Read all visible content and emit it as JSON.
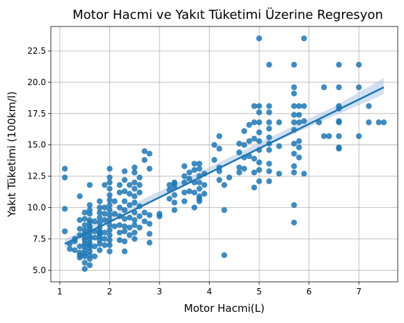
{
  "chart_data": {
    "type": "scatter",
    "title": "Motor Hacmi ve Yakıt Tüketimi Üzerine Regresyon",
    "xlabel": "Motor Hacmi(L)",
    "ylabel": "Yakıt Tüketimi (100km/l)",
    "xlim": [
      0.82,
      7.78
    ],
    "ylim": [
      4.07,
      24.45
    ],
    "xticks": [
      1,
      2,
      3,
      4,
      5,
      6,
      7
    ],
    "yticks": [
      5.0,
      7.5,
      10.0,
      12.5,
      15.0,
      17.5,
      20.0,
      22.5
    ],
    "grid": true,
    "colors": {
      "points": "#1f77b4",
      "line": "#1f77b4",
      "band": "#aec7e8"
    },
    "regression": {
      "x": [
        1.1,
        7.5
      ],
      "y": [
        7.1,
        19.6
      ]
    },
    "confidence_band": {
      "x": [
        1.1,
        1.8,
        2.5,
        3.5,
        4.5,
        5.5,
        6.5,
        7.5
      ],
      "lower": [
        6.75,
        8.45,
        9.85,
        11.85,
        13.75,
        15.55,
        17.3,
        19.05
      ],
      "upper": [
        7.45,
        8.95,
        10.35,
        12.25,
        14.2,
        16.15,
        18.05,
        20.35
      ]
    },
    "points": [
      [
        1.1,
        13.1
      ],
      [
        1.1,
        12.4
      ],
      [
        1.1,
        9.9
      ],
      [
        1.1,
        8.1
      ],
      [
        1.2,
        7.1
      ],
      [
        1.2,
        6.7
      ],
      [
        1.3,
        7.5
      ],
      [
        1.3,
        6.6
      ],
      [
        1.3,
        7.3
      ],
      [
        1.4,
        6.2
      ],
      [
        1.4,
        6.0
      ],
      [
        1.4,
        6.9
      ],
      [
        1.4,
        7.8
      ],
      [
        1.4,
        8.3
      ],
      [
        1.4,
        9.0
      ],
      [
        1.4,
        10.9
      ],
      [
        1.4,
        6.4
      ],
      [
        1.5,
        5.1
      ],
      [
        1.5,
        5.6
      ],
      [
        1.5,
        6.1
      ],
      [
        1.5,
        6.3
      ],
      [
        1.5,
        6.6
      ],
      [
        1.5,
        6.9
      ],
      [
        1.5,
        7.1
      ],
      [
        1.5,
        7.4
      ],
      [
        1.5,
        7.6
      ],
      [
        1.5,
        7.9
      ],
      [
        1.5,
        8.2
      ],
      [
        1.5,
        8.6
      ],
      [
        1.5,
        9.1
      ],
      [
        1.5,
        9.6
      ],
      [
        1.6,
        5.4
      ],
      [
        1.6,
        5.9
      ],
      [
        1.6,
        6.2
      ],
      [
        1.6,
        6.5
      ],
      [
        1.6,
        6.8
      ],
      [
        1.6,
        7.0
      ],
      [
        1.6,
        7.2
      ],
      [
        1.6,
        7.5
      ],
      [
        1.6,
        7.7
      ],
      [
        1.6,
        8.0
      ],
      [
        1.6,
        8.3
      ],
      [
        1.6,
        8.5
      ],
      [
        1.6,
        8.8
      ],
      [
        1.6,
        9.0
      ],
      [
        1.6,
        9.5
      ],
      [
        1.6,
        9.8
      ],
      [
        1.6,
        10.2
      ],
      [
        1.6,
        11.8
      ],
      [
        1.7,
        6.1
      ],
      [
        1.7,
        6.9
      ],
      [
        1.7,
        7.6
      ],
      [
        1.7,
        8.1
      ],
      [
        1.7,
        8.9
      ],
      [
        1.8,
        6.6
      ],
      [
        1.8,
        7.1
      ],
      [
        1.8,
        7.4
      ],
      [
        1.8,
        7.7
      ],
      [
        1.8,
        7.9
      ],
      [
        1.8,
        8.1
      ],
      [
        1.8,
        8.4
      ],
      [
        1.8,
        8.8
      ],
      [
        1.8,
        9.2
      ],
      [
        1.8,
        9.6
      ],
      [
        1.8,
        10.0
      ],
      [
        1.8,
        10.5
      ],
      [
        1.8,
        8.0
      ],
      [
        1.9,
        7.0
      ],
      [
        1.9,
        7.5
      ],
      [
        1.9,
        8.0
      ],
      [
        1.9,
        9.0
      ],
      [
        1.9,
        9.5
      ],
      [
        1.9,
        10.0
      ],
      [
        1.9,
        11.8
      ],
      [
        2.0,
        6.5
      ],
      [
        2.0,
        7.0
      ],
      [
        2.0,
        7.4
      ],
      [
        2.0,
        7.8
      ],
      [
        2.0,
        8.2
      ],
      [
        2.0,
        8.6
      ],
      [
        2.0,
        9.0
      ],
      [
        2.0,
        9.4
      ],
      [
        2.0,
        9.8
      ],
      [
        2.0,
        10.2
      ],
      [
        2.0,
        10.6
      ],
      [
        2.0,
        11.0
      ],
      [
        2.0,
        11.5
      ],
      [
        2.0,
        12.0
      ],
      [
        2.0,
        12.4
      ],
      [
        2.0,
        13.1
      ],
      [
        2.1,
        8.5
      ],
      [
        2.1,
        9.5
      ],
      [
        2.1,
        10.5
      ],
      [
        2.2,
        7.4
      ],
      [
        2.2,
        8.0
      ],
      [
        2.2,
        8.6
      ],
      [
        2.2,
        9.3
      ],
      [
        2.2,
        10.0
      ],
      [
        2.2,
        11.2
      ],
      [
        2.2,
        11.8
      ],
      [
        2.3,
        6.5
      ],
      [
        2.3,
        7.3
      ],
      [
        2.3,
        8.1
      ],
      [
        2.3,
        8.5
      ],
      [
        2.3,
        9.1
      ],
      [
        2.3,
        9.8
      ],
      [
        2.3,
        10.5
      ],
      [
        2.3,
        11.3
      ],
      [
        2.3,
        12.2
      ],
      [
        2.3,
        12.9
      ],
      [
        2.4,
        7.8
      ],
      [
        2.4,
        8.4
      ],
      [
        2.4,
        9.2
      ],
      [
        2.4,
        10.2
      ],
      [
        2.4,
        11.1
      ],
      [
        2.4,
        11.8
      ],
      [
        2.5,
        7.5
      ],
      [
        2.5,
        8.0
      ],
      [
        2.5,
        8.6
      ],
      [
        2.5,
        9.0
      ],
      [
        2.5,
        9.6
      ],
      [
        2.5,
        10.4
      ],
      [
        2.5,
        10.9
      ],
      [
        2.5,
        11.5
      ],
      [
        2.5,
        12.0
      ],
      [
        2.5,
        12.8
      ],
      [
        2.5,
        13.2
      ],
      [
        2.6,
        8.4
      ],
      [
        2.6,
        9.3
      ],
      [
        2.6,
        10.1
      ],
      [
        2.6,
        11.2
      ],
      [
        2.6,
        11.8
      ],
      [
        2.6,
        12.4
      ],
      [
        2.7,
        8.9
      ],
      [
        2.7,
        9.6
      ],
      [
        2.7,
        13.8
      ],
      [
        2.7,
        14.5
      ],
      [
        2.8,
        7.2
      ],
      [
        2.8,
        7.9
      ],
      [
        2.8,
        8.7
      ],
      [
        2.8,
        9.4
      ],
      [
        2.8,
        13.1
      ],
      [
        2.8,
        14.3
      ],
      [
        3.0,
        9.3
      ],
      [
        3.0,
        9.5
      ],
      [
        3.2,
        10.7
      ],
      [
        3.2,
        11.4
      ],
      [
        3.2,
        11.8
      ],
      [
        3.3,
        9.8
      ],
      [
        3.3,
        10.4
      ],
      [
        3.3,
        11.0
      ],
      [
        3.3,
        11.6
      ],
      [
        3.3,
        12.0
      ],
      [
        3.3,
        11.9
      ],
      [
        3.5,
        10.5
      ],
      [
        3.5,
        11.2
      ],
      [
        3.5,
        12.0
      ],
      [
        3.5,
        12.5
      ],
      [
        3.5,
        13.3
      ],
      [
        3.6,
        11.3
      ],
      [
        3.6,
        12.3
      ],
      [
        3.6,
        12.8
      ],
      [
        3.7,
        10.0
      ],
      [
        3.7,
        11.2
      ],
      [
        3.7,
        12.0
      ],
      [
        3.7,
        13.0
      ],
      [
        3.7,
        13.5
      ],
      [
        3.8,
        10.5
      ],
      [
        3.8,
        10.9
      ],
      [
        3.8,
        11.5
      ],
      [
        3.8,
        12.0
      ],
      [
        3.8,
        12.5
      ],
      [
        3.8,
        13.1
      ],
      [
        3.8,
        13.5
      ],
      [
        3.8,
        10.7
      ],
      [
        3.9,
        11.1
      ],
      [
        3.9,
        11.8
      ],
      [
        3.9,
        12.7
      ],
      [
        4.1,
        13.8
      ],
      [
        4.1,
        15.0
      ],
      [
        4.2,
        12.2
      ],
      [
        4.2,
        12.9
      ],
      [
        4.2,
        13.2
      ],
      [
        4.2,
        14.7
      ],
      [
        4.2,
        15.7
      ],
      [
        4.3,
        11.8
      ],
      [
        4.3,
        9.8
      ],
      [
        4.3,
        6.2
      ],
      [
        4.4,
        12.4
      ],
      [
        4.6,
        12.8
      ],
      [
        4.6,
        13.2
      ],
      [
        4.6,
        14.4
      ],
      [
        4.6,
        15.1
      ],
      [
        4.7,
        13.1
      ],
      [
        4.7,
        14.0
      ],
      [
        4.7,
        15.0
      ],
      [
        4.7,
        16.1
      ],
      [
        4.8,
        14.1
      ],
      [
        4.8,
        15.3
      ],
      [
        4.8,
        16.6
      ],
      [
        4.9,
        12.8
      ],
      [
        4.9,
        13.9
      ],
      [
        4.9,
        15.5
      ],
      [
        4.9,
        16.8
      ],
      [
        4.9,
        18.1
      ],
      [
        4.9,
        11.6
      ],
      [
        5.0,
        12.1
      ],
      [
        5.0,
        13.0
      ],
      [
        5.0,
        13.6
      ],
      [
        5.0,
        14.6
      ],
      [
        5.0,
        15.3
      ],
      [
        5.0,
        16.0
      ],
      [
        5.0,
        16.8
      ],
      [
        5.0,
        17.6
      ],
      [
        5.0,
        18.1
      ],
      [
        5.0,
        23.5
      ],
      [
        5.2,
        12.9
      ],
      [
        5.2,
        13.5
      ],
      [
        5.2,
        14.6
      ],
      [
        5.2,
        15.1
      ],
      [
        5.2,
        15.6
      ],
      [
        5.2,
        16.3
      ],
      [
        5.2,
        16.8
      ],
      [
        5.2,
        17.6
      ],
      [
        5.2,
        18.1
      ],
      [
        5.2,
        21.4
      ],
      [
        5.2,
        12.1
      ],
      [
        5.4,
        12.7
      ],
      [
        5.4,
        14.9
      ],
      [
        5.4,
        16.8
      ],
      [
        5.7,
        8.8
      ],
      [
        5.7,
        10.2
      ],
      [
        5.7,
        12.8
      ],
      [
        5.7,
        13.3
      ],
      [
        5.7,
        14.3
      ],
      [
        5.7,
        15.1
      ],
      [
        5.7,
        16.2
      ],
      [
        5.7,
        16.8
      ],
      [
        5.7,
        17.4
      ],
      [
        5.7,
        18.1
      ],
      [
        5.7,
        19.1
      ],
      [
        5.7,
        19.6
      ],
      [
        5.7,
        21.4
      ],
      [
        5.8,
        14.0
      ],
      [
        5.8,
        14.8
      ],
      [
        5.8,
        15.3
      ],
      [
        5.8,
        16.8
      ],
      [
        5.8,
        17.4
      ],
      [
        5.8,
        18.1
      ],
      [
        5.9,
        18.1
      ],
      [
        5.9,
        16.9
      ],
      [
        5.9,
        23.5
      ],
      [
        5.9,
        12.7
      ],
      [
        6.2,
        16.8
      ],
      [
        6.3,
        19.6
      ],
      [
        6.3,
        15.7
      ],
      [
        6.4,
        15.7
      ],
      [
        6.6,
        14.8
      ],
      [
        6.6,
        15.7
      ],
      [
        6.6,
        16.8
      ],
      [
        6.6,
        17.9
      ],
      [
        6.6,
        18.1
      ],
      [
        6.6,
        19.6
      ],
      [
        6.6,
        21.4
      ],
      [
        6.6,
        14.7
      ],
      [
        6.6,
        16.9
      ],
      [
        7.0,
        15.7
      ],
      [
        7.0,
        19.6
      ],
      [
        7.0,
        21.4
      ],
      [
        7.2,
        18.1
      ],
      [
        7.2,
        16.8
      ],
      [
        7.4,
        16.8
      ],
      [
        7.5,
        16.8
      ]
    ]
  }
}
